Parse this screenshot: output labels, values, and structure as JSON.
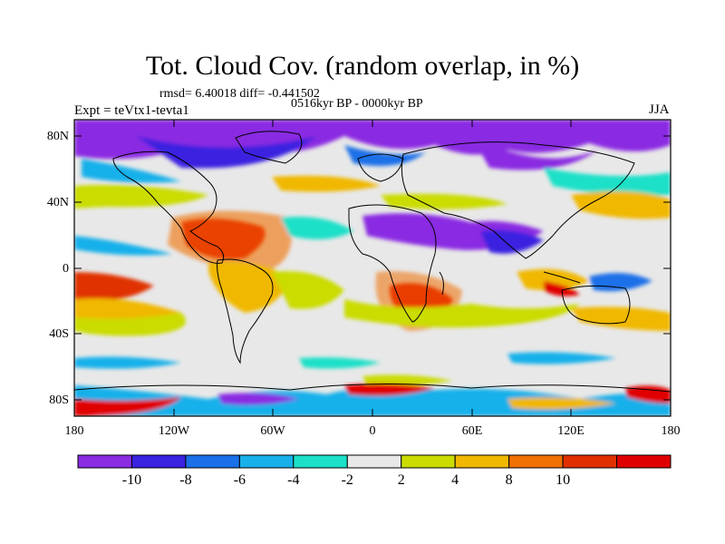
{
  "header": {
    "title": "Tot. Cloud Cov. (random overlap, in %)",
    "stats": "rmsd= 6.40018 diff= -0.441502",
    "period": "0516kyr BP - 0000kyr BP",
    "experiment": "Expt = teVtx1-tevta1",
    "season": "JJA"
  },
  "map": {
    "lat_labels": [
      "80N",
      "40N",
      "0",
      "40S",
      "80S"
    ],
    "lon_labels": [
      "180",
      "120W",
      "60W",
      "0",
      "60E",
      "120E",
      "180"
    ]
  },
  "colorbar": {
    "labels": [
      "-10",
      "-8",
      "-6",
      "-4",
      "-2",
      "2",
      "4",
      "8",
      "10"
    ],
    "colors": [
      "#8a2be2",
      "#3a22e0",
      "#1a70e8",
      "#18b0ea",
      "#1ce0c8",
      "#e8e8e8",
      "#cadc00",
      "#f0b800",
      "#f07000",
      "#e03000",
      "#e00000"
    ]
  }
}
